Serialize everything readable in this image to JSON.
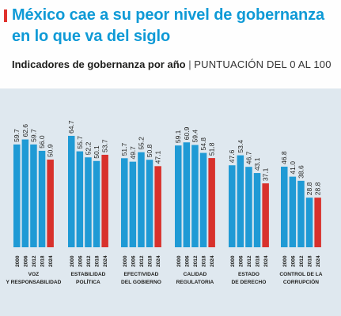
{
  "header": {
    "title": "México cae a su peor nivel de gobernanza en lo que va del siglo",
    "subtitle_main": "Indicadores de gobernanza por año",
    "subtitle_sep": "|",
    "subtitle_unit": "PUNTUACIÓN DEL 0 AL 100"
  },
  "colors": {
    "title": "#0f9ad6",
    "accent": "#e0322d",
    "bar_blue": "#1f9ad5",
    "bar_red": "#d8312c",
    "chart_bg": "#dfe8ef"
  },
  "chart_data": {
    "type": "bar",
    "years": [
      "2000",
      "2006",
      "2012",
      "2018",
      "2024"
    ],
    "highlight_year": "2024",
    "ylim": [
      0,
      70
    ],
    "groups": [
      {
        "label": [
          "VOZ",
          "Y RESPONSABILIDAD"
        ],
        "values": [
          59.7,
          62.6,
          59.7,
          56.0,
          50.9
        ]
      },
      {
        "label": [
          "ESTABILIDAD",
          "POLÍTICA"
        ],
        "values": [
          64.7,
          55.7,
          52.2,
          50.1,
          53.7
        ]
      },
      {
        "label": [
          "EFECTIVIDAD",
          "DEL GOBIERNO"
        ],
        "values": [
          51.7,
          49.7,
          55.2,
          50.8,
          47.1
        ]
      },
      {
        "label": [
          "CALIDAD",
          "REGULATORIA"
        ],
        "values": [
          59.1,
          60.9,
          59.4,
          54.8,
          51.8
        ]
      },
      {
        "label": [
          "ESTADO",
          "DE DERECHO"
        ],
        "values": [
          47.6,
          53.4,
          46.7,
          43.1,
          37.1
        ]
      },
      {
        "label": [
          "CONTROL DE LA",
          "CORRUPCIÓN"
        ],
        "values": [
          46.8,
          41.0,
          38.6,
          28.8,
          28.8
        ]
      }
    ]
  }
}
